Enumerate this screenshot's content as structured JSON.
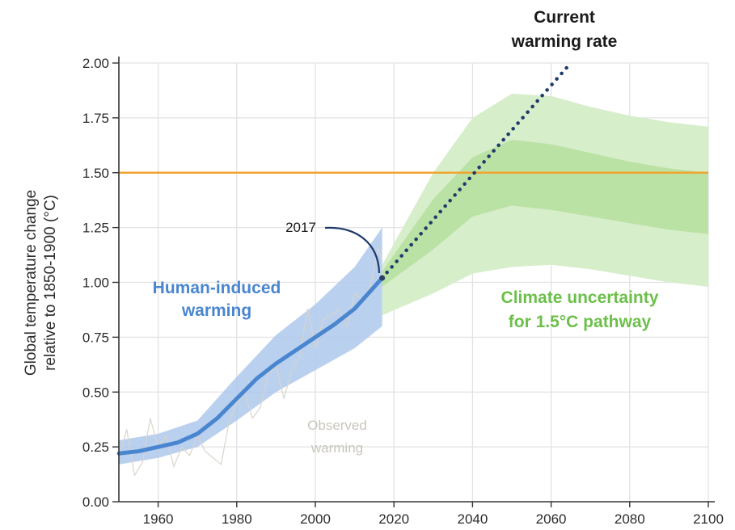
{
  "chart_data": {
    "type": "line",
    "title": "",
    "xlabel": "",
    "ylabel": "Global temperature change relative to 1850-1900 (°C)",
    "ylabel_lines": [
      "Global temperature change",
      "relative to 1850-1900 (°C)"
    ],
    "xlim": [
      1950,
      2100
    ],
    "ylim": [
      0,
      2
    ],
    "x_ticks": [
      1960,
      1980,
      2000,
      2020,
      2040,
      2060,
      2080,
      2100
    ],
    "y_ticks": [
      "0.00",
      "0.25",
      "0.50",
      "0.75",
      "1.00",
      "1.25",
      "1.50",
      "1.75",
      "2.00"
    ],
    "grid": true,
    "colors": {
      "human_line": "#4a86cf",
      "human_band": "#aec8ec",
      "outer_band": "#d7eecb",
      "inner_band": "#b6df9f",
      "threshold": "#f0a530",
      "dotted": "#1e3a6b",
      "observed": "#d8d4ca",
      "green_label": "#6cbf4a",
      "blue_label": "#4a86cf"
    },
    "series": [
      {
        "name": "Human-induced warming",
        "x": [
          1950,
          1955,
          1960,
          1965,
          1970,
          1975,
          1980,
          1985,
          1990,
          1995,
          2000,
          2005,
          2010,
          2015,
          2017
        ],
        "values": [
          0.22,
          0.23,
          0.25,
          0.27,
          0.31,
          0.38,
          0.47,
          0.56,
          0.63,
          0.69,
          0.75,
          0.81,
          0.88,
          0.98,
          1.02
        ]
      },
      {
        "name": "Human-induced warming range",
        "x": [
          1950,
          1960,
          1970,
          1980,
          1990,
          2000,
          2010,
          2017
        ],
        "lower": [
          0.17,
          0.2,
          0.25,
          0.37,
          0.5,
          0.6,
          0.7,
          0.8
        ],
        "upper": [
          0.28,
          0.31,
          0.37,
          0.57,
          0.76,
          0.9,
          1.07,
          1.25
        ]
      },
      {
        "name": "Current warming rate",
        "x": [
          2017,
          2065
        ],
        "values": [
          1.02,
          2.0
        ]
      },
      {
        "name": "Climate uncertainty for 1.5°C pathway",
        "x": [
          2017,
          2030,
          2040,
          2050,
          2060,
          2070,
          2080,
          2090,
          2100
        ],
        "outer_lower": [
          0.85,
          0.95,
          1.04,
          1.07,
          1.08,
          1.06,
          1.03,
          1.0,
          0.98
        ],
        "outer_upper": [
          1.08,
          1.5,
          1.75,
          1.86,
          1.85,
          1.8,
          1.76,
          1.73,
          1.71
        ],
        "inner_lower": [
          0.98,
          1.15,
          1.3,
          1.35,
          1.33,
          1.3,
          1.27,
          1.24,
          1.22
        ],
        "inner_upper": [
          1.05,
          1.38,
          1.57,
          1.65,
          1.63,
          1.59,
          1.55,
          1.52,
          1.5
        ]
      },
      {
        "name": "Observed warming",
        "x": [
          1950,
          1952,
          1954,
          1956,
          1958,
          1960,
          1962,
          1964,
          1966,
          1968,
          1970,
          1972,
          1974,
          1976,
          1978,
          1980,
          1982,
          1984,
          1986,
          1988,
          1990,
          1992,
          1994,
          1996,
          1998,
          2000,
          2002,
          2004,
          2006,
          2008,
          2010,
          2012,
          2014,
          2016,
          2017
        ],
        "values": [
          0.2,
          0.33,
          0.12,
          0.18,
          0.38,
          0.25,
          0.3,
          0.16,
          0.25,
          0.21,
          0.3,
          0.23,
          0.2,
          0.17,
          0.36,
          0.45,
          0.5,
          0.38,
          0.43,
          0.58,
          0.62,
          0.47,
          0.6,
          0.66,
          0.88,
          0.7,
          0.83,
          0.85,
          0.88,
          0.8,
          0.95,
          0.92,
          0.98,
          1.16,
          1.1
        ]
      }
    ],
    "threshold_line": {
      "y": 1.5
    },
    "marker_2017": {
      "x": 2017,
      "y": 1.02
    },
    "annotations": {
      "current_rate": [
        "Current",
        "warming rate"
      ],
      "year_2017": "2017",
      "human_induced": [
        "Human-induced",
        "warming"
      ],
      "climate_uncertainty": [
        "Climate uncertainty",
        "for 1.5°C pathway"
      ],
      "observed": [
        "Observed",
        "warming"
      ]
    }
  }
}
